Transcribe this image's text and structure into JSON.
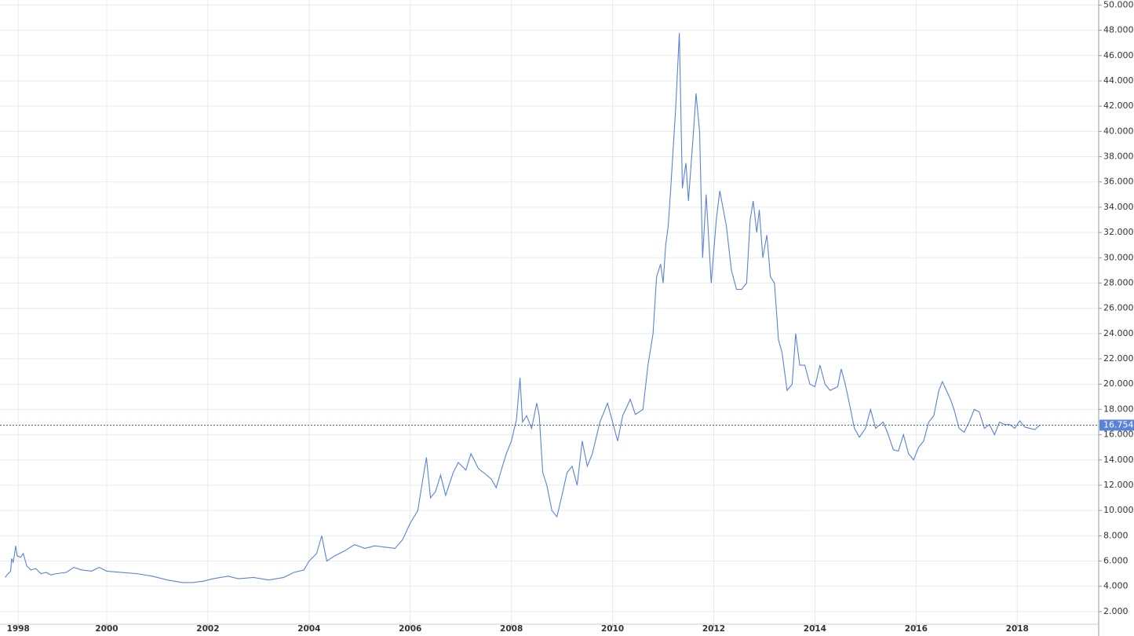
{
  "chart_data": {
    "type": "line",
    "color": "#5a82d8",
    "grid": true,
    "x": [
      1997.99,
      1998.05,
      1998.1,
      1998.12,
      1998.15,
      1998.18,
      1998.2,
      1998.23,
      1998.3,
      1998.35,
      1998.42,
      1998.5,
      1998.6,
      1998.7,
      1998.8,
      1998.9,
      1999.0,
      1999.2,
      1999.35,
      1999.5,
      1999.7,
      1999.85,
      2000.0,
      2000.3,
      2000.6,
      2000.9,
      2001.2,
      2001.5,
      2001.7,
      2001.9,
      2002.1,
      2002.4,
      2002.6,
      2002.9,
      2003.2,
      2003.5,
      2003.7,
      2003.9,
      2004.0,
      2004.15,
      2004.25,
      2004.35,
      2004.5,
      2004.7,
      2004.9,
      2005.1,
      2005.3,
      2005.5,
      2005.7,
      2005.85,
      2006.0,
      2006.15,
      2006.25,
      2006.32,
      2006.4,
      2006.5,
      2006.6,
      2006.7,
      2006.85,
      2006.95,
      2007.1,
      2007.2,
      2007.35,
      2007.45,
      2007.6,
      2007.7,
      2007.8,
      2007.9,
      2008.0,
      2008.1,
      2008.17,
      2008.22,
      2008.3,
      2008.4,
      2008.5,
      2008.55,
      2008.62,
      2008.7,
      2008.8,
      2008.9,
      2009.0,
      2009.1,
      2009.2,
      2009.3,
      2009.4,
      2009.5,
      2009.6,
      2009.75,
      2009.9,
      2010.0,
      2010.1,
      2010.2,
      2010.35,
      2010.45,
      2010.6,
      2010.7,
      2010.8,
      2010.87,
      2010.95,
      2011.0,
      2011.05,
      2011.1,
      2011.15,
      2011.25,
      2011.32,
      2011.38,
      2011.45,
      2011.5,
      2011.6,
      2011.65,
      2011.72,
      2011.78,
      2011.85,
      2011.95,
      2012.05,
      2012.12,
      2012.25,
      2012.35,
      2012.45,
      2012.55,
      2012.65,
      2012.72,
      2012.78,
      2012.85,
      2012.9,
      2012.97,
      2013.05,
      2013.12,
      2013.2,
      2013.28,
      2013.35,
      2013.45,
      2013.55,
      2013.62,
      2013.7,
      2013.8,
      2013.9,
      2014.0,
      2014.1,
      2014.2,
      2014.3,
      2014.45,
      2014.52,
      2014.6,
      2014.68,
      2014.78,
      2014.88,
      2015.0,
      2015.1,
      2015.2,
      2015.35,
      2015.45,
      2015.55,
      2015.65,
      2015.75,
      2015.85,
      2015.95,
      2016.05,
      2016.15,
      2016.25,
      2016.35,
      2016.45,
      2016.52,
      2016.6,
      2016.68,
      2016.75,
      2016.85,
      2016.95,
      2017.05,
      2017.15,
      2017.25,
      2017.35,
      2017.45,
      2017.55,
      2017.65,
      2017.75,
      2017.85,
      2017.95,
      2018.05,
      2018.15,
      2018.25,
      2018.35,
      2018.4,
      2018.45
    ],
    "values": [
      4.7,
      5.0,
      5.2,
      6.2,
      5.9,
      6.6,
      7.2,
      6.4,
      6.3,
      6.6,
      5.6,
      5.3,
      5.4,
      5.0,
      5.1,
      4.9,
      5.0,
      5.1,
      5.5,
      5.3,
      5.2,
      5.5,
      5.2,
      5.1,
      5.0,
      4.8,
      4.5,
      4.3,
      4.3,
      4.4,
      4.6,
      4.8,
      4.6,
      4.7,
      4.5,
      4.7,
      5.1,
      5.3,
      6.0,
      6.6,
      8.0,
      6.0,
      6.4,
      6.8,
      7.3,
      7.0,
      7.2,
      7.1,
      7.0,
      7.7,
      9.0,
      10.0,
      12.5,
      14.2,
      11.0,
      11.5,
      12.8,
      11.2,
      13.0,
      13.8,
      13.2,
      14.5,
      13.3,
      13.0,
      12.5,
      11.8,
      13.2,
      14.5,
      15.5,
      17.2,
      20.5,
      17.0,
      17.5,
      16.5,
      18.5,
      17.5,
      13.0,
      12.0,
      10.0,
      9.5,
      11.2,
      13.0,
      13.5,
      12.0,
      15.5,
      13.5,
      14.5,
      17.0,
      18.5,
      17.0,
      15.5,
      17.5,
      18.8,
      17.6,
      18.0,
      21.5,
      24.0,
      28.5,
      29.5,
      28.0,
      31.0,
      32.5,
      35.5,
      42.0,
      47.8,
      35.5,
      37.5,
      34.5,
      40.0,
      43.0,
      40.0,
      30.0,
      35.0,
      28.0,
      33.0,
      35.3,
      32.5,
      29.0,
      27.5,
      27.5,
      28.0,
      33.0,
      34.5,
      32.0,
      33.8,
      30.0,
      31.8,
      28.5,
      28.0,
      23.5,
      22.5,
      19.5,
      20.0,
      24.0,
      21.5,
      21.5,
      20.0,
      19.8,
      21.5,
      20.0,
      19.5,
      19.8,
      21.2,
      20.0,
      18.5,
      16.5,
      15.8,
      16.5,
      18.0,
      16.5,
      17.0,
      16.0,
      14.8,
      14.7,
      16.0,
      14.5,
      14.0,
      15.0,
      15.5,
      17.0,
      17.5,
      19.5,
      20.2,
      19.5,
      18.8,
      18.0,
      16.5,
      16.2,
      17.0,
      18.0,
      17.8,
      16.5,
      16.8,
      16.0,
      17.0,
      16.8,
      16.8,
      16.5,
      17.1,
      16.6,
      16.5,
      16.4,
      16.6,
      16.75
    ],
    "xlim": [
      1997.89,
      2019.61
    ],
    "xticks": [
      {
        "value": 1998.25,
        "label": "1998"
      },
      2000,
      2002,
      2004,
      2006,
      2008,
      2010,
      2012,
      2014,
      2016,
      2018
    ],
    "ylim": [
      1,
      50.4
    ],
    "yticks": [
      {
        "value": 2,
        "label": "2.000"
      },
      {
        "value": 4,
        "label": "4.000"
      },
      {
        "value": 6,
        "label": "6.000"
      },
      {
        "value": 8,
        "label": "8.000"
      },
      {
        "value": 10,
        "label": "10.000"
      },
      {
        "value": 12,
        "label": "12.000"
      },
      {
        "value": 14,
        "label": "14.000"
      },
      {
        "value": 16,
        "label": "16.000"
      },
      {
        "value": 18,
        "label": "18.000"
      },
      {
        "value": 20,
        "label": "20.000"
      },
      {
        "value": 22,
        "label": "22.000"
      },
      {
        "value": 24,
        "label": "24.000"
      },
      {
        "value": 26,
        "label": "26.000"
      },
      {
        "value": 28,
        "label": "28.000"
      },
      {
        "value": 30,
        "label": "30.000"
      },
      {
        "value": 32,
        "label": "32.000"
      },
      {
        "value": 34,
        "label": "34.000"
      },
      {
        "value": 36,
        "label": "36.000"
      },
      {
        "value": 38,
        "label": "38.000"
      },
      {
        "value": 40,
        "label": "40.000"
      },
      {
        "value": 42,
        "label": "42.000"
      },
      {
        "value": 44,
        "label": "44.000"
      },
      {
        "value": 46,
        "label": "46.000"
      },
      {
        "value": 48,
        "label": "48.000"
      },
      {
        "value": 50,
        "label": "50.000"
      }
    ],
    "current_price": 16.754
  }
}
